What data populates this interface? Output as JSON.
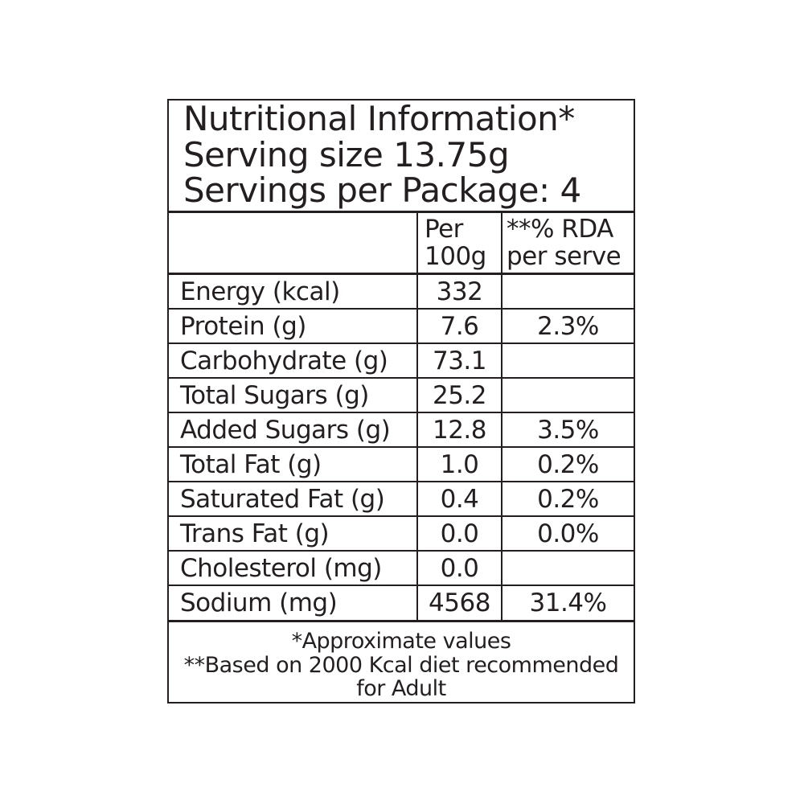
{
  "header": {
    "title": "Nutritional Information*",
    "serving_size": "Serving size 13.75g",
    "servings_per_package": "Servings per Package: 4"
  },
  "table": {
    "columns": {
      "nutrient": "",
      "per_100g": "Per\n100g",
      "rda_per_serve": "**% RDA\nper serve"
    },
    "rows": [
      {
        "nutrient": "Energy (kcal)",
        "per_100g": "332",
        "rda": ""
      },
      {
        "nutrient": "Protein (g)",
        "per_100g": "7.6",
        "rda": "2.3%"
      },
      {
        "nutrient": "Carbohydrate (g)",
        "per_100g": "73.1",
        "rda": ""
      },
      {
        "nutrient": "Total Sugars (g)",
        "per_100g": "25.2",
        "rda": ""
      },
      {
        "nutrient": "Added Sugars (g)",
        "per_100g": "12.8",
        "rda": "3.5%"
      },
      {
        "nutrient": "Total Fat (g)",
        "per_100g": "1.0",
        "rda": "0.2%"
      },
      {
        "nutrient": "Saturated Fat (g)",
        "per_100g": "0.4",
        "rda": "0.2%"
      },
      {
        "nutrient": "Trans Fat (g)",
        "per_100g": "0.0",
        "rda": "0.0%"
      },
      {
        "nutrient": "Cholesterol (mg)",
        "per_100g": "0.0",
        "rda": ""
      },
      {
        "nutrient": "Sodium (mg)",
        "per_100g": "4568",
        "rda": "31.4%"
      }
    ]
  },
  "footnotes": {
    "approximate": "*Approximate values",
    "rda_basis": "**Based on 2000 Kcal diet recommended for Adult"
  },
  "colors": {
    "ink": "#231f20",
    "background": "#ffffff"
  }
}
